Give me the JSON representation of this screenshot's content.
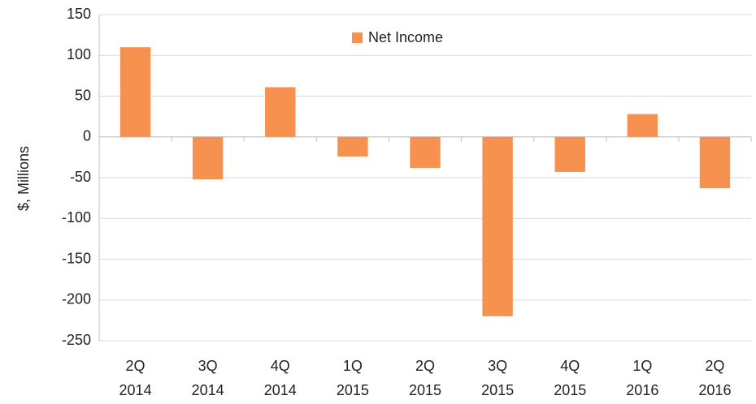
{
  "chart_data": {
    "type": "bar",
    "categories": [
      "2Q 2014",
      "3Q 2014",
      "4Q 2014",
      "1Q 2015",
      "2Q 2015",
      "3Q 2015",
      "4Q 2015",
      "1Q 2016",
      "2Q 2016"
    ],
    "series": [
      {
        "name": "Net Income",
        "color": "#f79150",
        "values": [
          110,
          -52,
          61,
          -24,
          -38,
          -220,
          -43,
          28,
          -63
        ]
      }
    ],
    "ylabel": "$, Millions",
    "ylim": [
      -250,
      150
    ],
    "yticks": [
      -250,
      -200,
      -150,
      -100,
      -50,
      0,
      50,
      100,
      150
    ],
    "grid": true,
    "legend": "top"
  }
}
